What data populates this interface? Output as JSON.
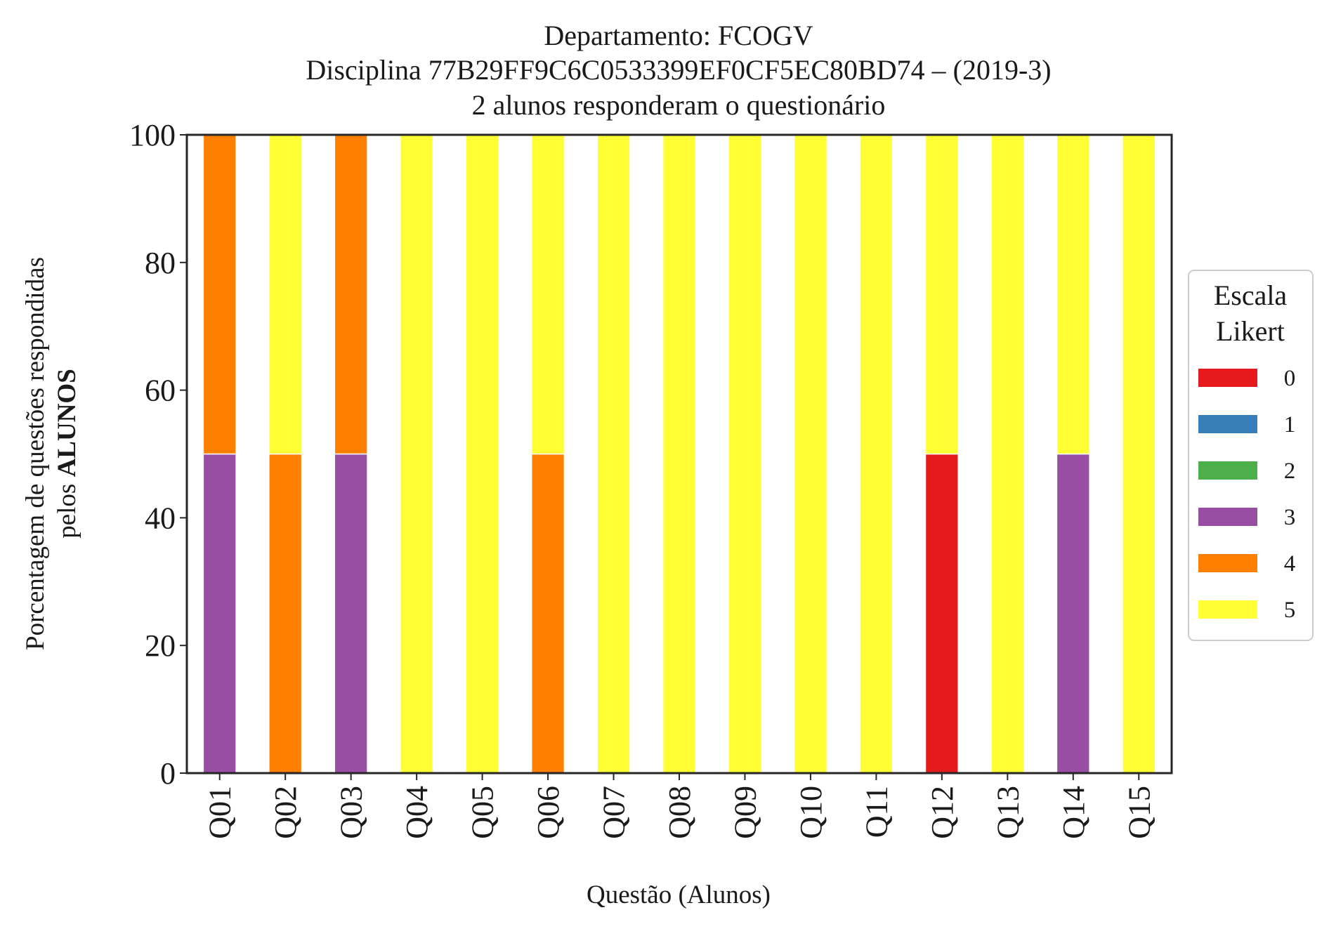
{
  "chart_data": {
    "type": "bar",
    "stacked": true,
    "title_lines": [
      "Departamento: FCOGV",
      "Disciplina 77B29FF9C6C0533399EF0CF5EC80BD74 – (2019-3)",
      "2 alunos responderam o questionário"
    ],
    "ylabel_line1": "Porcentagem de questões respondidas",
    "ylabel_line2_prefix": "pelos ",
    "ylabel_line2_bold": "ALUNOS",
    "xlabel": "Questão (Alunos)",
    "categories": [
      "Q01",
      "Q02",
      "Q03",
      "Q04",
      "Q05",
      "Q06",
      "Q07",
      "Q08",
      "Q09",
      "Q10",
      "Q11",
      "Q12",
      "Q13",
      "Q14",
      "Q15"
    ],
    "ylim": [
      0,
      100
    ],
    "yticks": [
      "0",
      "20",
      "40",
      "60",
      "80",
      "100"
    ],
    "grid": false,
    "legend": {
      "title_line1": "Escala",
      "title_line2": "Likert",
      "placement": "right-center"
    },
    "series": [
      {
        "name": "0",
        "color": "#e41a1c",
        "values": [
          0,
          0,
          0,
          0,
          0,
          0,
          0,
          0,
          0,
          0,
          0,
          50,
          0,
          0,
          0
        ]
      },
      {
        "name": "1",
        "color": "#377eb8",
        "values": [
          0,
          0,
          0,
          0,
          0,
          0,
          0,
          0,
          0,
          0,
          0,
          0,
          0,
          0,
          0
        ]
      },
      {
        "name": "2",
        "color": "#4daf4a",
        "values": [
          0,
          0,
          0,
          0,
          0,
          0,
          0,
          0,
          0,
          0,
          0,
          0,
          0,
          0,
          0
        ]
      },
      {
        "name": "3",
        "color": "#984ea3",
        "values": [
          50,
          0,
          50,
          0,
          0,
          0,
          0,
          0,
          0,
          0,
          0,
          0,
          0,
          50,
          0
        ]
      },
      {
        "name": "4",
        "color": "#ff7f00",
        "values": [
          50,
          50,
          50,
          0,
          0,
          50,
          0,
          0,
          0,
          0,
          0,
          0,
          0,
          0,
          0
        ]
      },
      {
        "name": "5",
        "color": "#ffff33",
        "values": [
          0,
          50,
          0,
          100,
          100,
          50,
          100,
          100,
          100,
          100,
          100,
          50,
          100,
          50,
          100
        ]
      }
    ]
  }
}
